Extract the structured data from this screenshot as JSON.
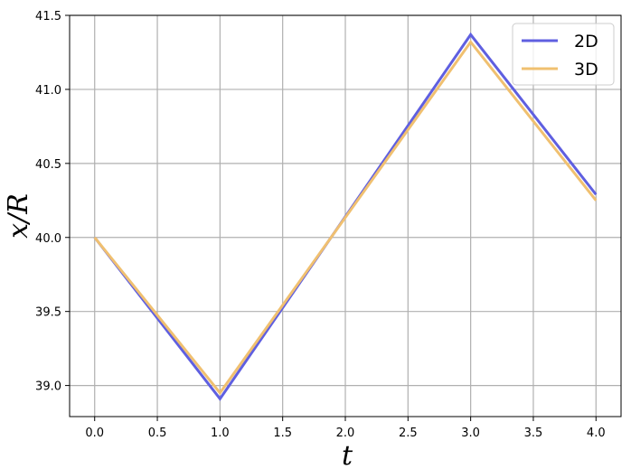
{
  "chart_data": {
    "type": "line",
    "x_label": "t",
    "y_label": "x/R",
    "x": [
      0,
      1,
      3,
      4
    ],
    "series": [
      {
        "name": "2D",
        "color": "#5f5fe0",
        "values": [
          40.0,
          38.91,
          41.37,
          40.29
        ]
      },
      {
        "name": "3D",
        "color": "#f0c070",
        "values": [
          40.0,
          38.95,
          41.32,
          40.25
        ]
      }
    ],
    "xlim": [
      -0.2,
      4.2
    ],
    "xticks": [
      {
        "value": 0,
        "label": "0.0"
      },
      0.5,
      {
        "value": 1,
        "label": "1.0"
      },
      1.5,
      {
        "value": 2,
        "label": "2.0"
      },
      2.5,
      {
        "value": 3,
        "label": "3.0"
      },
      3.5,
      {
        "value": 4,
        "label": "4.0"
      }
    ],
    "ylim": [
      38.79,
      41.5
    ],
    "yticks": [
      {
        "value": 39,
        "label": "39.0"
      },
      39.5,
      {
        "value": 40,
        "label": "40.0"
      },
      40.5,
      {
        "value": 41,
        "label": "41.0"
      },
      41.5
    ],
    "grid": true,
    "legend": "upper-right"
  }
}
